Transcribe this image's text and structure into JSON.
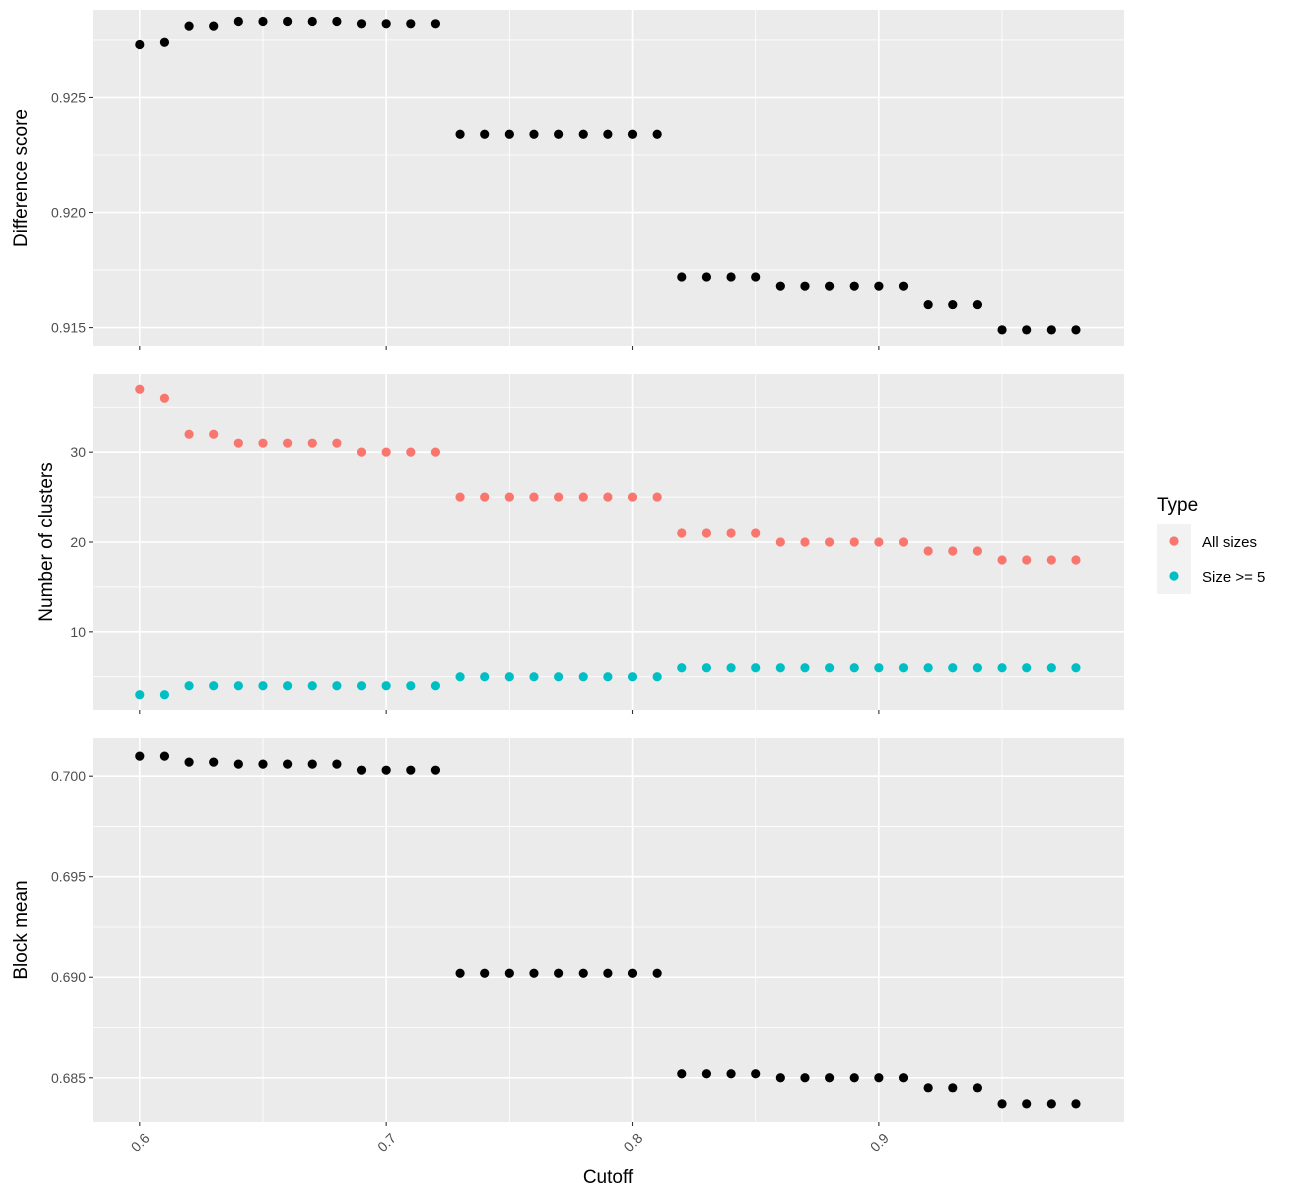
{
  "chart_data": {
    "type": "scatter",
    "xlabel": "Cutoff",
    "x_ticks": [
      0.6,
      0.7,
      0.8,
      0.9
    ],
    "x_tick_labels": [
      "0.6",
      "0.7",
      "0.8",
      "0.9"
    ],
    "x": [
      0.6,
      0.61,
      0.62,
      0.63,
      0.64,
      0.65,
      0.66,
      0.67,
      0.68,
      0.69,
      0.7,
      0.71,
      0.72,
      0.73,
      0.74,
      0.75,
      0.76,
      0.77,
      0.78,
      0.79,
      0.8,
      0.81,
      0.82,
      0.83,
      0.84,
      0.85,
      0.86,
      0.87,
      0.88,
      0.89,
      0.9,
      0.91,
      0.92,
      0.93,
      0.94,
      0.95,
      0.96,
      0.97,
      0.98
    ],
    "xlim": [
      0.581,
      0.9995
    ],
    "panels": [
      {
        "ylabel": "Difference score",
        "y_ticks": [
          0.915,
          0.92,
          0.925
        ],
        "y_tick_labels": [
          "0.915",
          "0.920",
          "0.925"
        ],
        "ylim": [
          0.9142,
          0.9288
        ],
        "series": [
          {
            "color": "#000000",
            "values": [
              0.9273,
              0.9274,
              0.9281,
              0.9281,
              0.9283,
              0.9283,
              0.9283,
              0.9283,
              0.9283,
              0.9282,
              0.9282,
              0.9282,
              0.9282,
              0.9234,
              0.9234,
              0.9234,
              0.9234,
              0.9234,
              0.9234,
              0.9234,
              0.9234,
              0.9234,
              0.9172,
              0.9172,
              0.9172,
              0.9172,
              0.9168,
              0.9168,
              0.9168,
              0.9168,
              0.9168,
              0.9168,
              0.916,
              0.916,
              0.916,
              0.9149,
              0.9149,
              0.9149,
              0.9149
            ]
          }
        ]
      },
      {
        "ylabel": "Number of clusters",
        "y_ticks": [
          10,
          20,
          30
        ],
        "y_tick_labels": [
          "10",
          "20",
          "30"
        ],
        "ylim": [
          1.3,
          38.7
        ],
        "series": [
          {
            "name": "All sizes",
            "color": "#f8766d",
            "values": [
              37,
              36,
              32,
              32,
              31,
              31,
              31,
              31,
              31,
              30,
              30,
              30,
              30,
              25,
              25,
              25,
              25,
              25,
              25,
              25,
              25,
              25,
              21,
              21,
              21,
              21,
              20,
              20,
              20,
              20,
              20,
              20,
              19,
              19,
              19,
              18,
              18,
              18,
              18
            ]
          },
          {
            "name": "Size >= 5",
            "color": "#00bfc4",
            "values": [
              3,
              3,
              4,
              4,
              4,
              4,
              4,
              4,
              4,
              4,
              4,
              4,
              4,
              5,
              5,
              5,
              5,
              5,
              5,
              5,
              5,
              5,
              6,
              6,
              6,
              6,
              6,
              6,
              6,
              6,
              6,
              6,
              6,
              6,
              6,
              6,
              6,
              6,
              6
            ]
          }
        ]
      },
      {
        "ylabel": "Block mean",
        "y_ticks": [
          0.685,
          0.69,
          0.695,
          0.7
        ],
        "y_tick_labels": [
          "0.685",
          "0.690",
          "0.695",
          "0.700"
        ],
        "ylim": [
          0.6828,
          0.7019
        ],
        "series": [
          {
            "color": "#000000",
            "values": [
              0.701,
              0.701,
              0.7007,
              0.7007,
              0.7006,
              0.7006,
              0.7006,
              0.7006,
              0.7006,
              0.7003,
              0.7003,
              0.7003,
              0.7003,
              0.6902,
              0.6902,
              0.6902,
              0.6902,
              0.6902,
              0.6902,
              0.6902,
              0.6902,
              0.6902,
              0.6852,
              0.6852,
              0.6852,
              0.6852,
              0.685,
              0.685,
              0.685,
              0.685,
              0.685,
              0.685,
              0.6845,
              0.6845,
              0.6845,
              0.6837,
              0.6837,
              0.6837,
              0.6837
            ]
          }
        ]
      }
    ],
    "legend": {
      "title": "Type",
      "position": "right",
      "entries": [
        {
          "label": "All sizes",
          "color": "#f8766d"
        },
        {
          "label": "Size >= 5",
          "color": "#00bfc4"
        }
      ]
    },
    "grid": true,
    "panel_background": "#ebebeb",
    "grid_color": "#ffffff"
  }
}
